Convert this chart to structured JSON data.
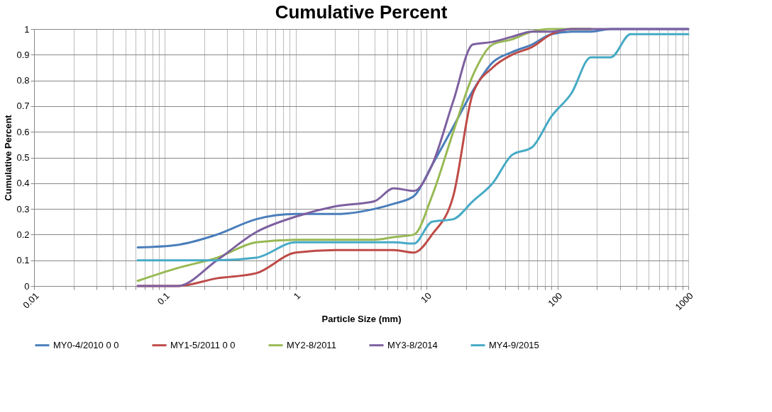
{
  "chart_data": {
    "type": "line",
    "title": "Cumulative Percent",
    "xlabel": "Particle Size (mm)",
    "ylabel": "Cumulative Percent",
    "log": "x",
    "grid": true,
    "legend": "bottom",
    "marker": "none",
    "line_style": "solid",
    "x": [
      0.062,
      0.125,
      0.25,
      0.5,
      1,
      2,
      4,
      5.6,
      8,
      11,
      16,
      22.6,
      32,
      45,
      64,
      90,
      128,
      180,
      256,
      362,
      512,
      1000
    ],
    "xlim": [
      0.01,
      1000
    ],
    "ylim": [
      0,
      1
    ],
    "xticks": [
      0.01,
      {
        "value": 0.02,
        "label": null
      },
      {
        "value": 0.03,
        "label": null
      },
      {
        "value": 0.04,
        "label": null
      },
      {
        "value": 0.05,
        "label": null
      },
      {
        "value": 0.06,
        "label": null
      },
      {
        "value": 0.07,
        "label": null
      },
      {
        "value": 0.08,
        "label": null
      },
      {
        "value": 0.09,
        "label": null
      },
      0.1,
      {
        "value": 0.2,
        "label": null
      },
      {
        "value": 0.3,
        "label": null
      },
      {
        "value": 0.4,
        "label": null
      },
      {
        "value": 0.5,
        "label": null
      },
      {
        "value": 0.6,
        "label": null
      },
      {
        "value": 0.7,
        "label": null
      },
      {
        "value": 0.8,
        "label": null
      },
      {
        "value": 0.9,
        "label": null
      },
      1,
      {
        "value": 2,
        "label": null
      },
      {
        "value": 3,
        "label": null
      },
      {
        "value": 4,
        "label": null
      },
      {
        "value": 5,
        "label": null
      },
      {
        "value": 6,
        "label": null
      },
      {
        "value": 7,
        "label": null
      },
      {
        "value": 8,
        "label": null
      },
      {
        "value": 9,
        "label": null
      },
      10,
      {
        "value": 20,
        "label": null
      },
      {
        "value": 30,
        "label": null
      },
      {
        "value": 40,
        "label": null
      },
      {
        "value": 50,
        "label": null
      },
      {
        "value": 60,
        "label": null
      },
      {
        "value": 70,
        "label": null
      },
      {
        "value": 80,
        "label": null
      },
      {
        "value": 90,
        "label": null
      },
      100,
      {
        "value": 200,
        "label": null
      },
      {
        "value": 300,
        "label": null
      },
      {
        "value": 400,
        "label": null
      },
      {
        "value": 500,
        "label": null
      },
      {
        "value": 600,
        "label": null
      },
      {
        "value": 700,
        "label": null
      },
      {
        "value": 800,
        "label": null
      },
      {
        "value": 900,
        "label": null
      },
      1000
    ],
    "yticks": [
      0,
      0.1,
      0.2,
      0.3,
      0.4,
      0.5,
      0.6,
      0.7,
      0.8,
      0.9,
      1
    ],
    "series": [
      {
        "name": "MY0-4/2010 0 0",
        "color": "#4a7ebb",
        "values": [
          0.15,
          0.16,
          0.2,
          0.26,
          0.28,
          0.28,
          0.3,
          0.32,
          0.35,
          0.47,
          0.62,
          0.76,
          0.87,
          0.91,
          0.94,
          0.98,
          0.99,
          0.99,
          1,
          1,
          1,
          1
        ]
      },
      {
        "name": "MY1-5/2011 0 0",
        "color": "#be4b48",
        "values": [
          0,
          0,
          0.03,
          0.05,
          0.13,
          0.14,
          0.14,
          0.14,
          0.13,
          0.2,
          0.35,
          0.75,
          0.85,
          0.9,
          0.93,
          0.98,
          1,
          1,
          null,
          null,
          null,
          null
        ]
      },
      {
        "name": "MY2-8/2011",
        "color": "#98b954",
        "values": [
          0.02,
          0.07,
          0.11,
          0.17,
          0.18,
          0.18,
          0.18,
          0.19,
          0.2,
          0.35,
          0.6,
          0.82,
          0.94,
          0.96,
          0.99,
          1,
          1,
          1,
          null,
          null,
          null,
          null
        ]
      },
      {
        "name": "MY3-8/2014",
        "color": "#7d60a0",
        "values": [
          0,
          0,
          0.1,
          0.21,
          0.27,
          0.31,
          0.33,
          0.38,
          0.37,
          0.47,
          0.72,
          0.94,
          0.95,
          0.97,
          0.99,
          0.99,
          1,
          1,
          1,
          1,
          1,
          1
        ]
      },
      {
        "name": "MY4-9/2015",
        "color": "#46aac5",
        "values": [
          0.1,
          0.1,
          0.1,
          0.11,
          0.17,
          0.17,
          0.17,
          0.17,
          0.165,
          0.25,
          0.26,
          0.33,
          0.4,
          0.51,
          0.54,
          0.66,
          0.75,
          0.89,
          0.89,
          0.98,
          0.98,
          0.98
        ]
      }
    ]
  }
}
